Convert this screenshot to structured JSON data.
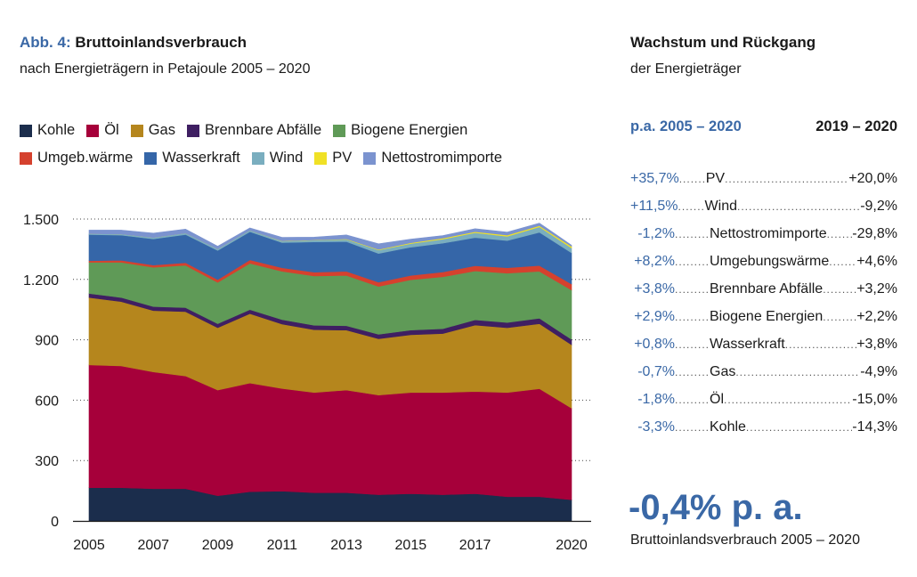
{
  "header": {
    "abb_label": "Abb. 4:",
    "title": "Bruttoinlandsverbrauch",
    "subtitle": "nach Energieträgern in Petajoule 2005 – 2020"
  },
  "legend": [
    {
      "label": "Kohle",
      "color": "#1b2d4c"
    },
    {
      "label": "Öl",
      "color": "#a6003a"
    },
    {
      "label": "Gas",
      "color": "#b5861d"
    },
    {
      "label": "Brennbare Abfälle",
      "color": "#3f1f62"
    },
    {
      "label": "Biogene Energien",
      "color": "#5f9a57"
    },
    {
      "label": "Umgeb.wärme",
      "color": "#d5412e"
    },
    {
      "label": "Wasserkraft",
      "color": "#3566a8"
    },
    {
      "label": "Wind",
      "color": "#7aaebf"
    },
    {
      "label": "PV",
      "color": "#f0e126"
    },
    {
      "label": "Nettostromimporte",
      "color": "#7b93cf"
    }
  ],
  "chart_data": {
    "type": "area",
    "stacked": true,
    "title": "Bruttoinlandsverbrauch nach Energieträgern in Petajoule 2005 – 2020",
    "xlabel": "",
    "ylabel": "Petajoule",
    "ylim": [
      0,
      1500
    ],
    "yticks": [
      0,
      300,
      600,
      900,
      1200,
      1500
    ],
    "ytick_labels": [
      "0",
      "300",
      "600",
      "900",
      "1.200",
      "1.500"
    ],
    "xtick_labels": [
      "2005",
      "2007",
      "2009",
      "2011",
      "2013",
      "2015",
      "2017",
      "2020"
    ],
    "x": [
      2005,
      2006,
      2007,
      2008,
      2009,
      2010,
      2011,
      2012,
      2013,
      2014,
      2015,
      2016,
      2017,
      2018,
      2019,
      2020
    ],
    "series": [
      {
        "name": "Kohle",
        "values": [
          165,
          165,
          160,
          160,
          125,
          145,
          148,
          140,
          140,
          130,
          135,
          130,
          135,
          120,
          120,
          105
        ]
      },
      {
        "name": "Öl",
        "values": [
          610,
          605,
          580,
          560,
          525,
          540,
          510,
          498,
          510,
          495,
          503,
          508,
          508,
          518,
          537,
          455
        ]
      },
      {
        "name": "Gas",
        "values": [
          335,
          320,
          305,
          320,
          310,
          345,
          320,
          312,
          298,
          280,
          287,
          293,
          330,
          322,
          323,
          315
        ]
      },
      {
        "name": "Brennbare Abfälle",
        "values": [
          20,
          20,
          20,
          20,
          20,
          20,
          22,
          22,
          22,
          22,
          23,
          24,
          26,
          26,
          27,
          27
        ]
      },
      {
        "name": "Biogene Energien",
        "values": [
          155,
          175,
          195,
          210,
          205,
          230,
          240,
          245,
          250,
          238,
          250,
          258,
          243,
          245,
          233,
          245
        ]
      },
      {
        "name": "Umgeb.wärme",
        "values": [
          8,
          10,
          11,
          13,
          14,
          17,
          18,
          19,
          20,
          21,
          22,
          24,
          26,
          27,
          29,
          30
        ]
      },
      {
        "name": "Wasserkraft",
        "values": [
          130,
          125,
          130,
          140,
          145,
          140,
          125,
          150,
          148,
          143,
          140,
          143,
          140,
          135,
          165,
          155
        ]
      },
      {
        "name": "Wind",
        "values": [
          4,
          5,
          7,
          7,
          7,
          7,
          7,
          9,
          11,
          17,
          18,
          20,
          24,
          21,
          27,
          24
        ]
      },
      {
        "name": "PV",
        "values": [
          0,
          0,
          0,
          0,
          0,
          0,
          1,
          1,
          2,
          3,
          4,
          5,
          5,
          6,
          6,
          8
        ]
      },
      {
        "name": "Nettostromimporte",
        "values": [
          18,
          20,
          22,
          20,
          14,
          12,
          18,
          14,
          20,
          28,
          18,
          13,
          15,
          15,
          13,
          6
        ]
      }
    ]
  },
  "right_panel": {
    "title": "Wachstum und Rückgang",
    "subtitle": "der Energieträger",
    "col_left_header": "p.a. 2005 – 2020",
    "col_right_header": "2019 – 2020",
    "rows": [
      {
        "left": "+35,7%",
        "name": "PV",
        "right": "+20,0%"
      },
      {
        "left": "+11,5%",
        "name": "Wind",
        "right": "-9,2%"
      },
      {
        "left": "-1,2%",
        "name": "Nettostromimporte",
        "right": "-29,8%"
      },
      {
        "left": "+8,2%",
        "name": "Umgebungswärme",
        "right": "+4,6%"
      },
      {
        "left": "+3,8%",
        "name": "Brennbare Abfälle",
        "right": "+3,2%"
      },
      {
        "left": "+2,9%",
        "name": "Biogene Energien",
        "right": "+2,2%"
      },
      {
        "left": "+0,8%",
        "name": "Wasserkraft",
        "right": "+3,8%"
      },
      {
        "left": "-0,7%",
        "name": "Gas",
        "right": "-4,9%"
      },
      {
        "left": "-1,8%",
        "name": "Öl",
        "right": "-15,0%"
      },
      {
        "left": "-3,3%",
        "name": "Kohle",
        "right": "-14,3%"
      }
    ],
    "big_value": "-0,4% p. a.",
    "big_caption": "Bruttoinlandsverbrauch 2005 – 2020"
  }
}
